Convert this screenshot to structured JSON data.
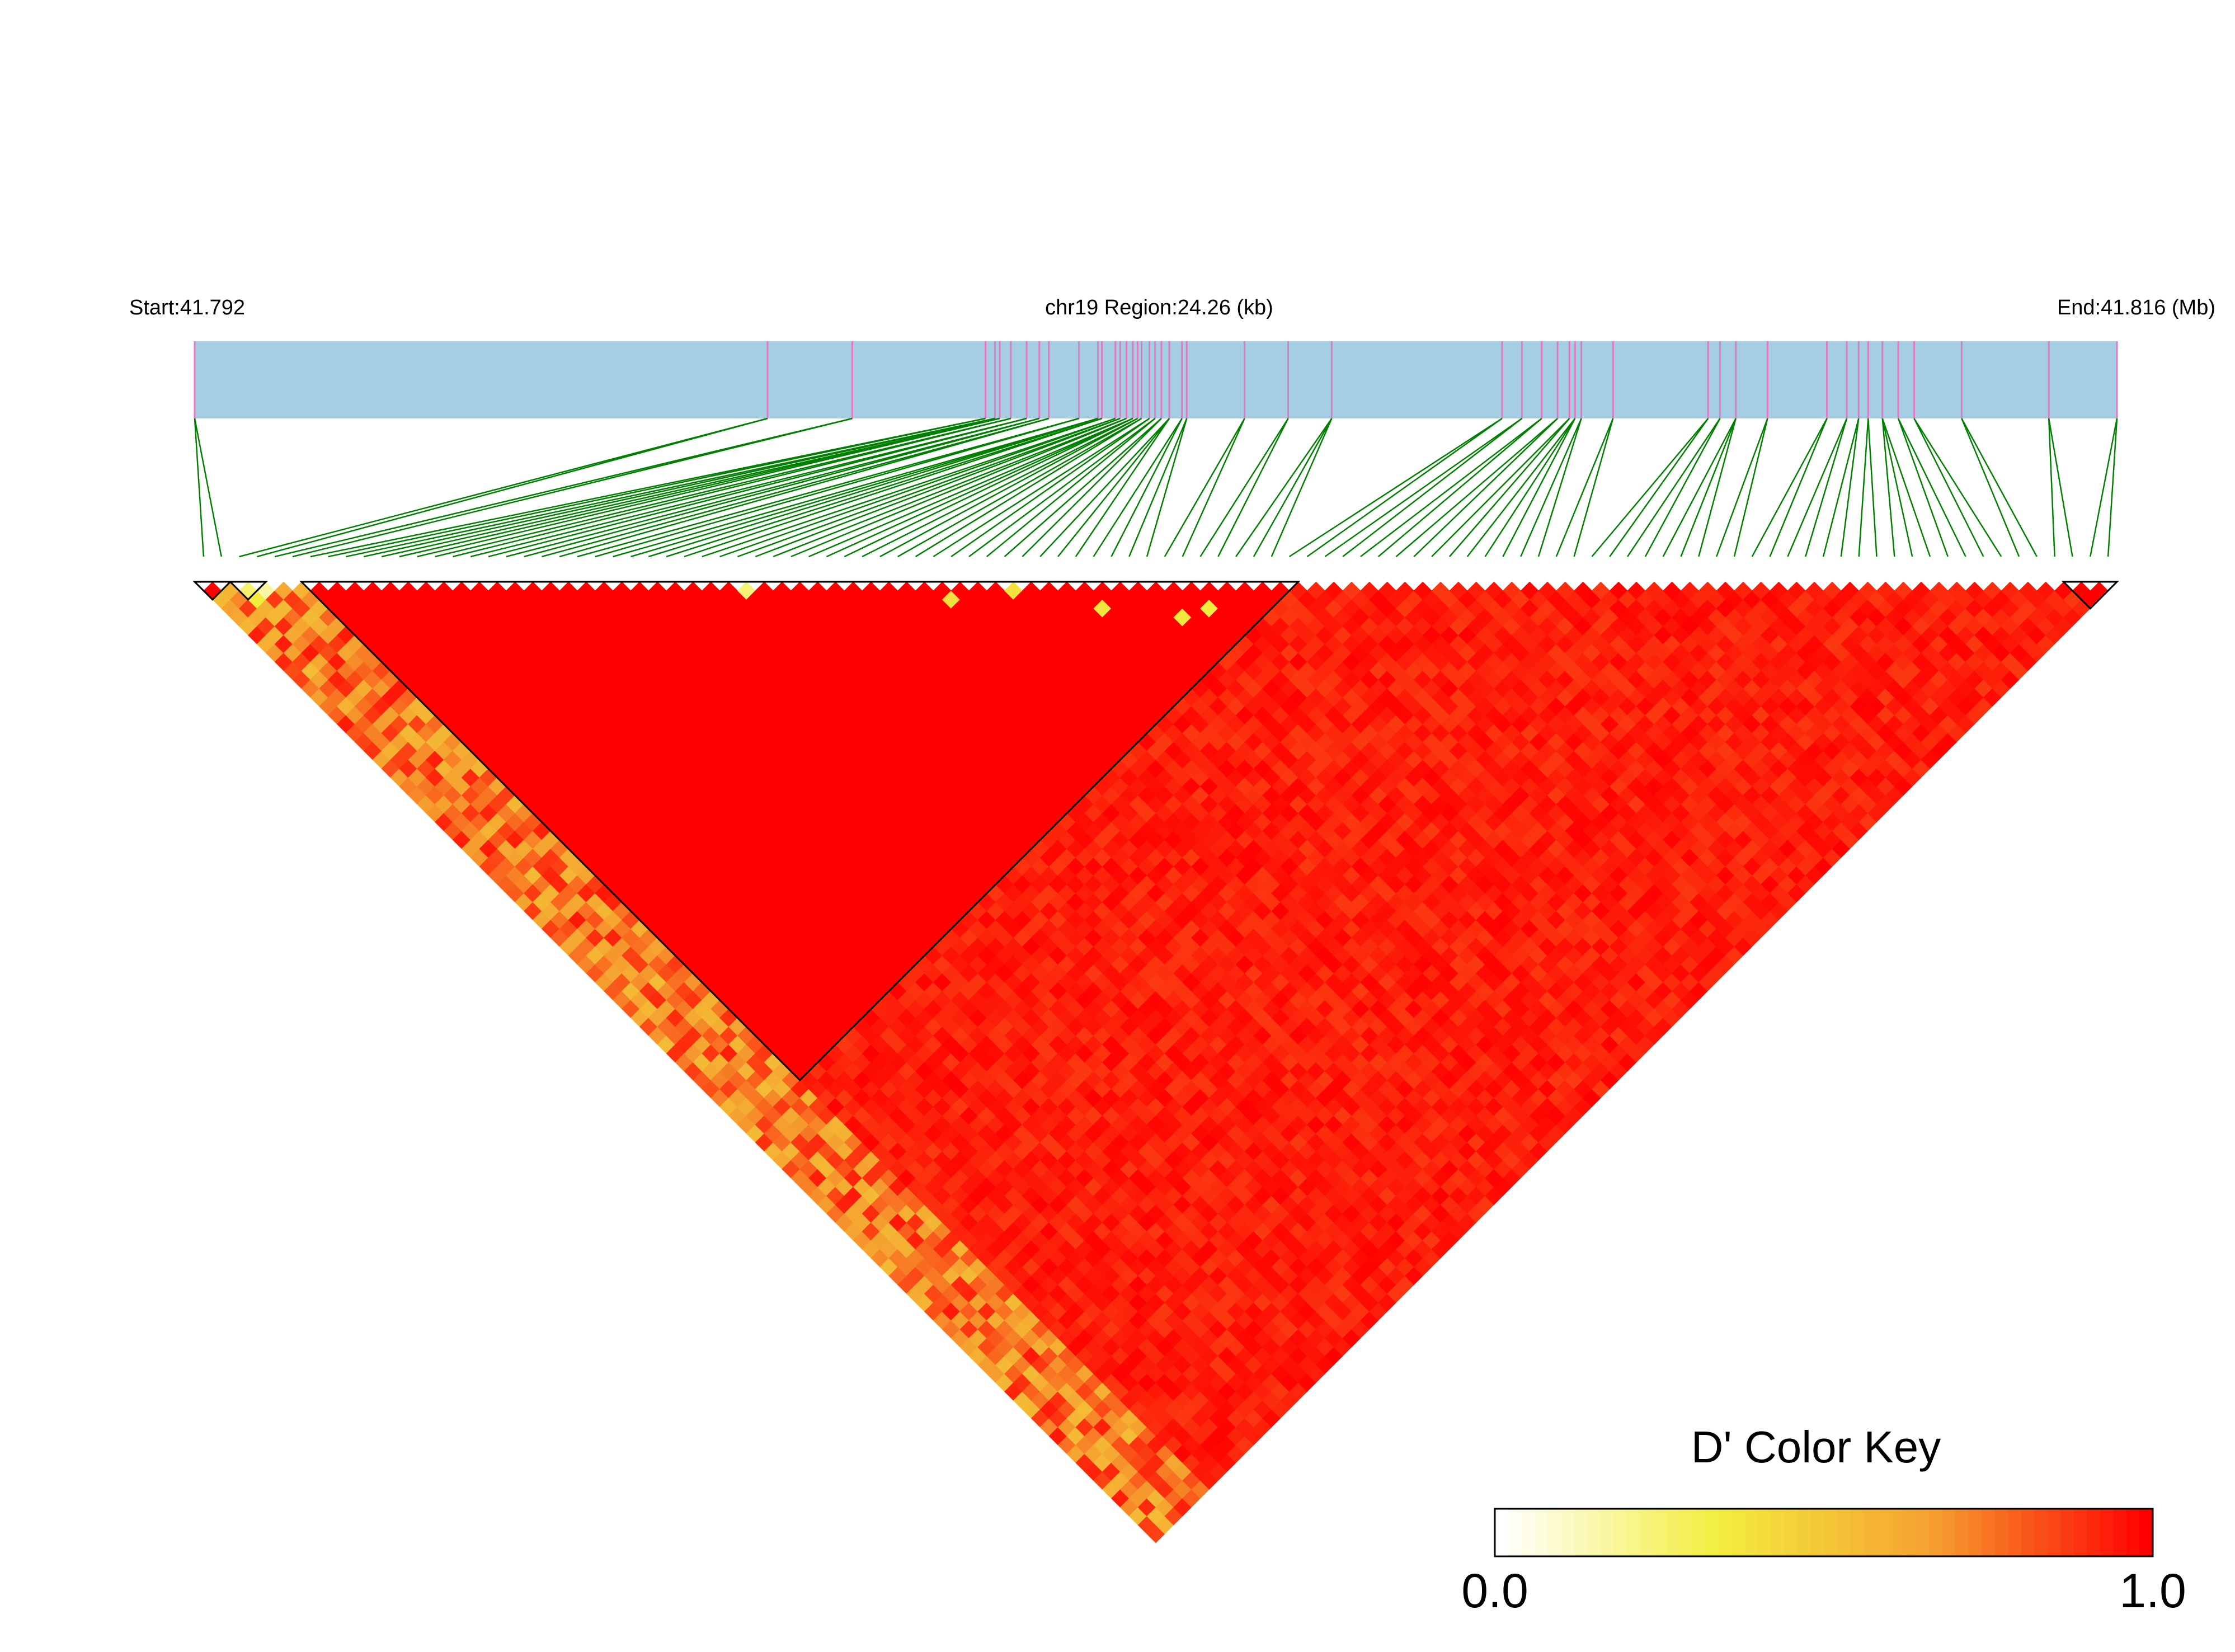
{
  "chart_data": {
    "type": "heatmap",
    "title": "",
    "header": {
      "start_label": "Start:41.792",
      "region_label": "chr19 Region:24.26 (kb)",
      "end_label": "End:41.816 (Mb)"
    },
    "region_kb": 24.26,
    "start_mb": 41.792,
    "end_mb": 41.816,
    "snp_count": 108,
    "snp_positions_kb": [
      0.0,
      7.23,
      8.3,
      9.98,
      10.1,
      10.16,
      10.3,
      10.5,
      10.66,
      10.78,
      11.16,
      11.4,
      11.45,
      11.62,
      11.68,
      11.76,
      11.84,
      11.9,
      11.95,
      12.05,
      12.12,
      12.2,
      12.3,
      12.46,
      12.52,
      13.25,
      13.8,
      14.35,
      16.5,
      16.75,
      17.0,
      17.2,
      17.35,
      17.42,
      17.5,
      17.9,
      19.1,
      19.25,
      19.45,
      19.85,
      20.6,
      20.85,
      21.0,
      21.12,
      21.3,
      21.5,
      21.7,
      22.3,
      23.4,
      24.26
    ],
    "ld_blocks": [
      {
        "from_snp": 1,
        "to_snp": 2
      },
      {
        "from_snp": 3,
        "to_snp": 4
      },
      {
        "from_snp": 7,
        "to_snp": 62
      },
      {
        "from_snp": 106,
        "to_snp": 108
      }
    ],
    "ld_summary": {
      "block_interior_dprime": 1.0,
      "left_flank_dprime_range": [
        0.15,
        0.9
      ],
      "low_dprime_pairs": [
        [
          2,
          3
        ],
        [
          3,
          4
        ],
        [
          2,
          4
        ],
        [
          30,
          31
        ],
        [
          41,
          43
        ],
        [
          45,
          46
        ],
        [
          49,
          52
        ],
        [
          53,
          57
        ],
        [
          55,
          58
        ]
      ]
    },
    "color_key": {
      "title": "D' Color Key",
      "min_label": "0.0",
      "max_label": "1.0",
      "stops": [
        "#ffffff",
        "#f3ee3f",
        "#f5a030",
        "#ff0000"
      ]
    },
    "colors": {
      "gene_bar": "#a6cee3",
      "snp_tick": "#e377c2",
      "connector": "#008000",
      "block_outline": "#000000"
    }
  }
}
